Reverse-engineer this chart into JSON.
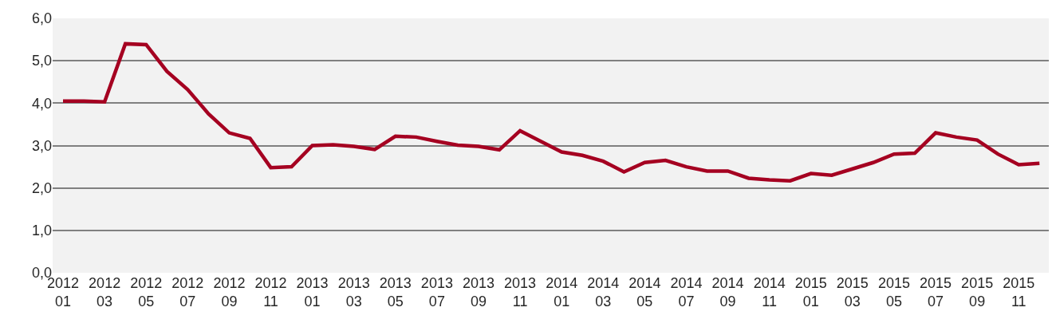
{
  "chart_data": {
    "type": "line",
    "categories": [
      "2012\n01",
      null,
      "2012\n03",
      null,
      "2012\n05",
      null,
      "2012\n07",
      null,
      "2012\n09",
      null,
      "2012\n11",
      null,
      "2013\n01",
      null,
      "2013\n03",
      null,
      "2013\n05",
      null,
      "2013\n07",
      null,
      "2013\n09",
      null,
      "2013\n11",
      null,
      "2014\n01",
      null,
      "2014\n03",
      null,
      "2014\n05",
      null,
      "2014\n07",
      null,
      "2014\n09",
      null,
      "2014\n11",
      null,
      "2015\n01",
      null,
      "2015\n03",
      null,
      "2015\n05",
      null,
      "2015\n07",
      null,
      "2015\n09",
      null,
      "2015\n11",
      null
    ],
    "series": [
      {
        "color": "#a50021",
        "values": [
          4.05,
          4.05,
          4.03,
          5.4,
          5.38,
          4.75,
          4.32,
          3.75,
          3.3,
          3.17,
          2.48,
          2.5,
          3.0,
          3.02,
          2.98,
          2.91,
          3.22,
          3.2,
          3.1,
          3.01,
          2.98,
          2.9,
          3.35,
          3.1,
          2.85,
          2.77,
          2.63,
          2.38,
          2.6,
          2.65,
          2.5,
          2.4,
          2.4,
          2.23,
          2.19,
          2.17,
          2.34,
          2.3,
          2.45,
          2.6,
          2.8,
          2.82,
          3.3,
          3.2,
          3.13,
          2.8,
          2.55,
          2.58
        ]
      }
    ],
    "ylim": [
      0,
      6
    ],
    "yticks": [
      {
        "value": 0,
        "label": "0,0"
      },
      {
        "value": 1,
        "label": "1,0"
      },
      {
        "value": 2,
        "label": "2,0"
      },
      {
        "value": 3,
        "label": "3,0"
      },
      {
        "value": 4,
        "label": "4,0"
      },
      {
        "value": 5,
        "label": "5,0"
      },
      {
        "value": 6,
        "label": "6,0"
      }
    ],
    "grid": "y",
    "legend": false,
    "marker": "none",
    "line_style": "solid"
  }
}
